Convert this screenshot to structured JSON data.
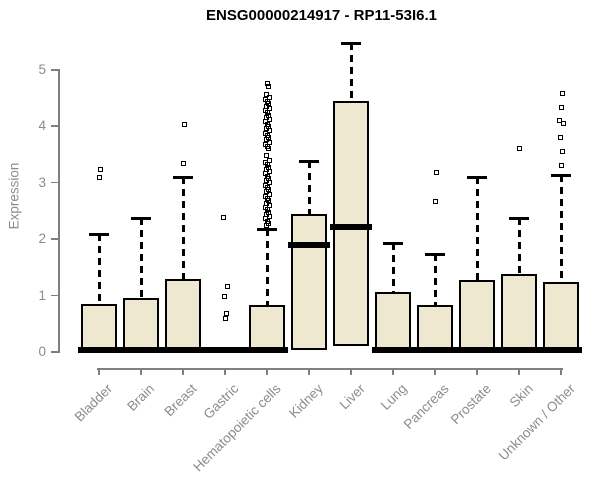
{
  "chart_data": {
    "type": "boxplot",
    "title": "ENSG00000214917 - RP11-53I6.1",
    "ylabel": "Expression",
    "xlabel": "",
    "yticks": [
      0,
      1,
      2,
      3,
      4,
      5
    ],
    "ylim": [
      0,
      5.6
    ],
    "grid": false,
    "legend": false,
    "whisker_style": "dashed",
    "colors": {
      "box_fill": "#EDE8CF",
      "box_border": "#000000",
      "median": "#000000",
      "axis": "#7f7f7f",
      "tick_label": "#8c8c8c",
      "title": "#000000",
      "background": "#ffffff"
    },
    "categories": [
      "Bladder",
      "Brain",
      "Breast",
      "Gastric",
      "Hematopoietic cells",
      "Kidney",
      "Liver",
      "Lung",
      "Pancreas",
      "Prostate",
      "Skin",
      "Unknown / Other"
    ],
    "boxes": [
      {
        "category": "Bladder",
        "q1": 0,
        "median": 0.03,
        "q3": 0.85,
        "whisker_low": null,
        "whisker_high": 2.1,
        "outliers": [
          3.09,
          3.23
        ]
      },
      {
        "category": "Brain",
        "q1": 0,
        "median": 0.03,
        "q3": 0.95,
        "whisker_low": null,
        "whisker_high": 2.37,
        "outliers": []
      },
      {
        "category": "Breast",
        "q1": 0,
        "median": 0.03,
        "q3": 1.3,
        "whisker_low": null,
        "whisker_high": 3.1,
        "outliers": [
          3.35,
          4.03
        ]
      },
      {
        "category": "Gastric",
        "q1": 0.03,
        "median": 0.03,
        "q3": 0.03,
        "whisker_low": null,
        "whisker_high": null,
        "outliers": [
          0.6,
          0.69,
          0.98,
          1.17,
          2.38
        ]
      },
      {
        "category": "Hematopoietic cells",
        "q1": 0,
        "median": 0.03,
        "q3": 0.84,
        "whisker_low": null,
        "whisker_high": 2.18,
        "outliers": [
          4.76,
          4.7,
          4.56,
          4.52,
          4.48,
          4.44,
          4.4,
          4.36,
          4.32,
          4.28,
          4.24,
          4.2,
          4.16,
          4.12,
          4.08,
          4.04,
          4.0,
          3.96,
          3.92,
          3.88,
          3.84,
          3.8,
          3.76,
          3.72,
          3.68,
          3.64,
          3.6,
          3.49,
          3.4,
          3.36,
          3.32,
          3.28,
          3.24,
          3.2,
          3.16,
          3.12,
          3.08,
          3.04,
          3.0,
          2.96,
          2.92,
          2.88,
          2.84,
          2.8,
          2.76,
          2.72,
          2.68,
          2.64,
          2.6,
          2.56,
          2.52,
          2.48,
          2.44,
          2.4,
          2.36,
          2.32,
          2.28,
          2.24
        ]
      },
      {
        "category": "Kidney",
        "q1": 0.03,
        "median": 1.9,
        "q3": 2.44,
        "whisker_low": null,
        "whisker_high": 3.38,
        "outliers": []
      },
      {
        "category": "Liver",
        "q1": 0.11,
        "median": 2.21,
        "q3": 4.45,
        "whisker_low": null,
        "whisker_high": 5.48,
        "outliers": []
      },
      {
        "category": "Lung",
        "q1": 0,
        "median": 0.03,
        "q3": 1.06,
        "whisker_low": null,
        "whisker_high": 1.94,
        "outliers": []
      },
      {
        "category": "Pancreas",
        "q1": 0,
        "median": 0.03,
        "q3": 0.84,
        "whisker_low": null,
        "whisker_high": 1.74,
        "outliers": [
          2.66,
          3.19
        ]
      },
      {
        "category": "Prostate",
        "q1": 0,
        "median": 0.03,
        "q3": 1.28,
        "whisker_low": null,
        "whisker_high": 3.1,
        "outliers": []
      },
      {
        "category": "Skin",
        "q1": 0,
        "median": 0.03,
        "q3": 1.38,
        "whisker_low": null,
        "whisker_high": 2.38,
        "outliers": [
          3.61
        ]
      },
      {
        "category": "Unknown / Other",
        "q1": 0,
        "median": 0.03,
        "q3": 1.24,
        "whisker_low": null,
        "whisker_high": 3.14,
        "outliers": [
          3.3,
          3.56,
          3.81,
          4.05,
          4.1,
          4.33,
          4.59
        ]
      }
    ]
  }
}
